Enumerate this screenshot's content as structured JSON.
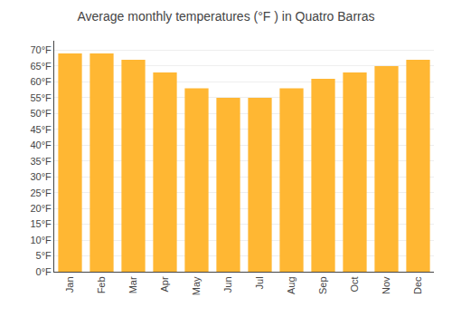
{
  "chart_data": {
    "type": "bar",
    "title": "Average monthly temperatures (°F ) in Quatro Barras",
    "categories": [
      "Jan",
      "Feb",
      "Mar",
      "Apr",
      "May",
      "Jun",
      "Jul",
      "Aug",
      "Sep",
      "Oct",
      "Nov",
      "Dec"
    ],
    "values": [
      69,
      69,
      67,
      63,
      58,
      55,
      55,
      58,
      61,
      63,
      65,
      67
    ],
    "color": "#FFB733",
    "ylim": [
      0,
      73
    ],
    "yticks": [
      {
        "value": 0,
        "label": "0°F"
      },
      {
        "value": 5,
        "label": "5°F"
      },
      {
        "value": 10,
        "label": "10°F"
      },
      {
        "value": 15,
        "label": "15°F"
      },
      {
        "value": 20,
        "label": "20°F"
      },
      {
        "value": 25,
        "label": "25°F"
      },
      {
        "value": 30,
        "label": "30°F"
      },
      {
        "value": 35,
        "label": "35°F"
      },
      {
        "value": 40,
        "label": "40°F"
      },
      {
        "value": 45,
        "label": "45°F"
      },
      {
        "value": 50,
        "label": "50°F"
      },
      {
        "value": 55,
        "label": "55°F"
      },
      {
        "value": 60,
        "label": "60°F"
      },
      {
        "value": 65,
        "label": "65°F"
      },
      {
        "value": 70,
        "label": "70°F"
      }
    ],
    "grid": true
  }
}
